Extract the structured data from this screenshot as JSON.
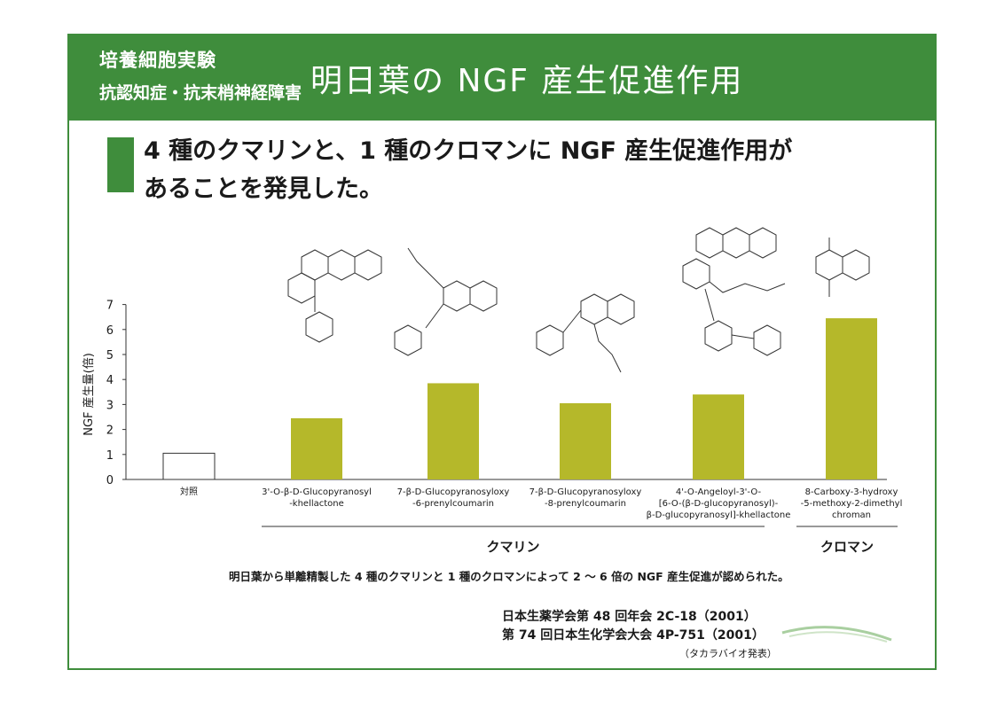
{
  "header": {
    "subtitle_line1": "培養細胞実験",
    "subtitle_line2": "抗認知症・抗末梢神経障害",
    "title": "明日葉の NGF 産生促進作用"
  },
  "headline": {
    "line1": "4 種のクマリンと、1 種のクロマンに NGF 産生促進作用が",
    "line2": "あることを発見した。"
  },
  "chart_data": {
    "type": "bar",
    "ylabel": "NGF 産生量(倍)",
    "ylim": [
      0,
      7
    ],
    "yticks": [
      "0",
      "1",
      "2",
      "3",
      "4",
      "5",
      "6",
      "7"
    ],
    "categories": [
      [
        "対照"
      ],
      [
        "3'-O-β-D-Glucopyranosyl",
        "-khellactone"
      ],
      [
        "7-β-D-Glucopyranosyloxy",
        "-6-prenylcoumarin"
      ],
      [
        "7-β-D-Glucopyranosyloxy",
        "-8-prenylcoumarin"
      ],
      [
        "4'-O-Angeloyl-3'-O-",
        "[6-O-(β-D-glucopyranosyl)-",
        "β-D-glucopyranosyl]-khellactone"
      ],
      [
        "8-Carboxy-3-hydroxy",
        "-5-methoxy-2-dimethyl",
        "chroman"
      ]
    ],
    "values": [
      1.05,
      2.45,
      3.85,
      3.05,
      3.4,
      6.45
    ],
    "bar_colors": [
      "#ffffff",
      "#b5b82a",
      "#b5b82a",
      "#b5b82a",
      "#b5b82a",
      "#b5b82a"
    ],
    "groups": [
      {
        "label": "クマリン",
        "from": 1,
        "to": 4
      },
      {
        "label": "クロマン",
        "from": 5,
        "to": 5
      }
    ]
  },
  "footnote": "明日葉から単離精製した 4 種のクマリンと 1 種のクロマンによって 2 ～ 6 倍の NGF 産生促進が認められた。",
  "references": {
    "ref1": "日本生薬学会第 48 回年会 2C-18（2001）",
    "ref2": "第 74 回日本生化学会大会 4P-751（2001）",
    "source": "（タカラバイオ発表）"
  },
  "colors": {
    "accent": "#3f8d3c",
    "bar": "#b5b82a"
  }
}
